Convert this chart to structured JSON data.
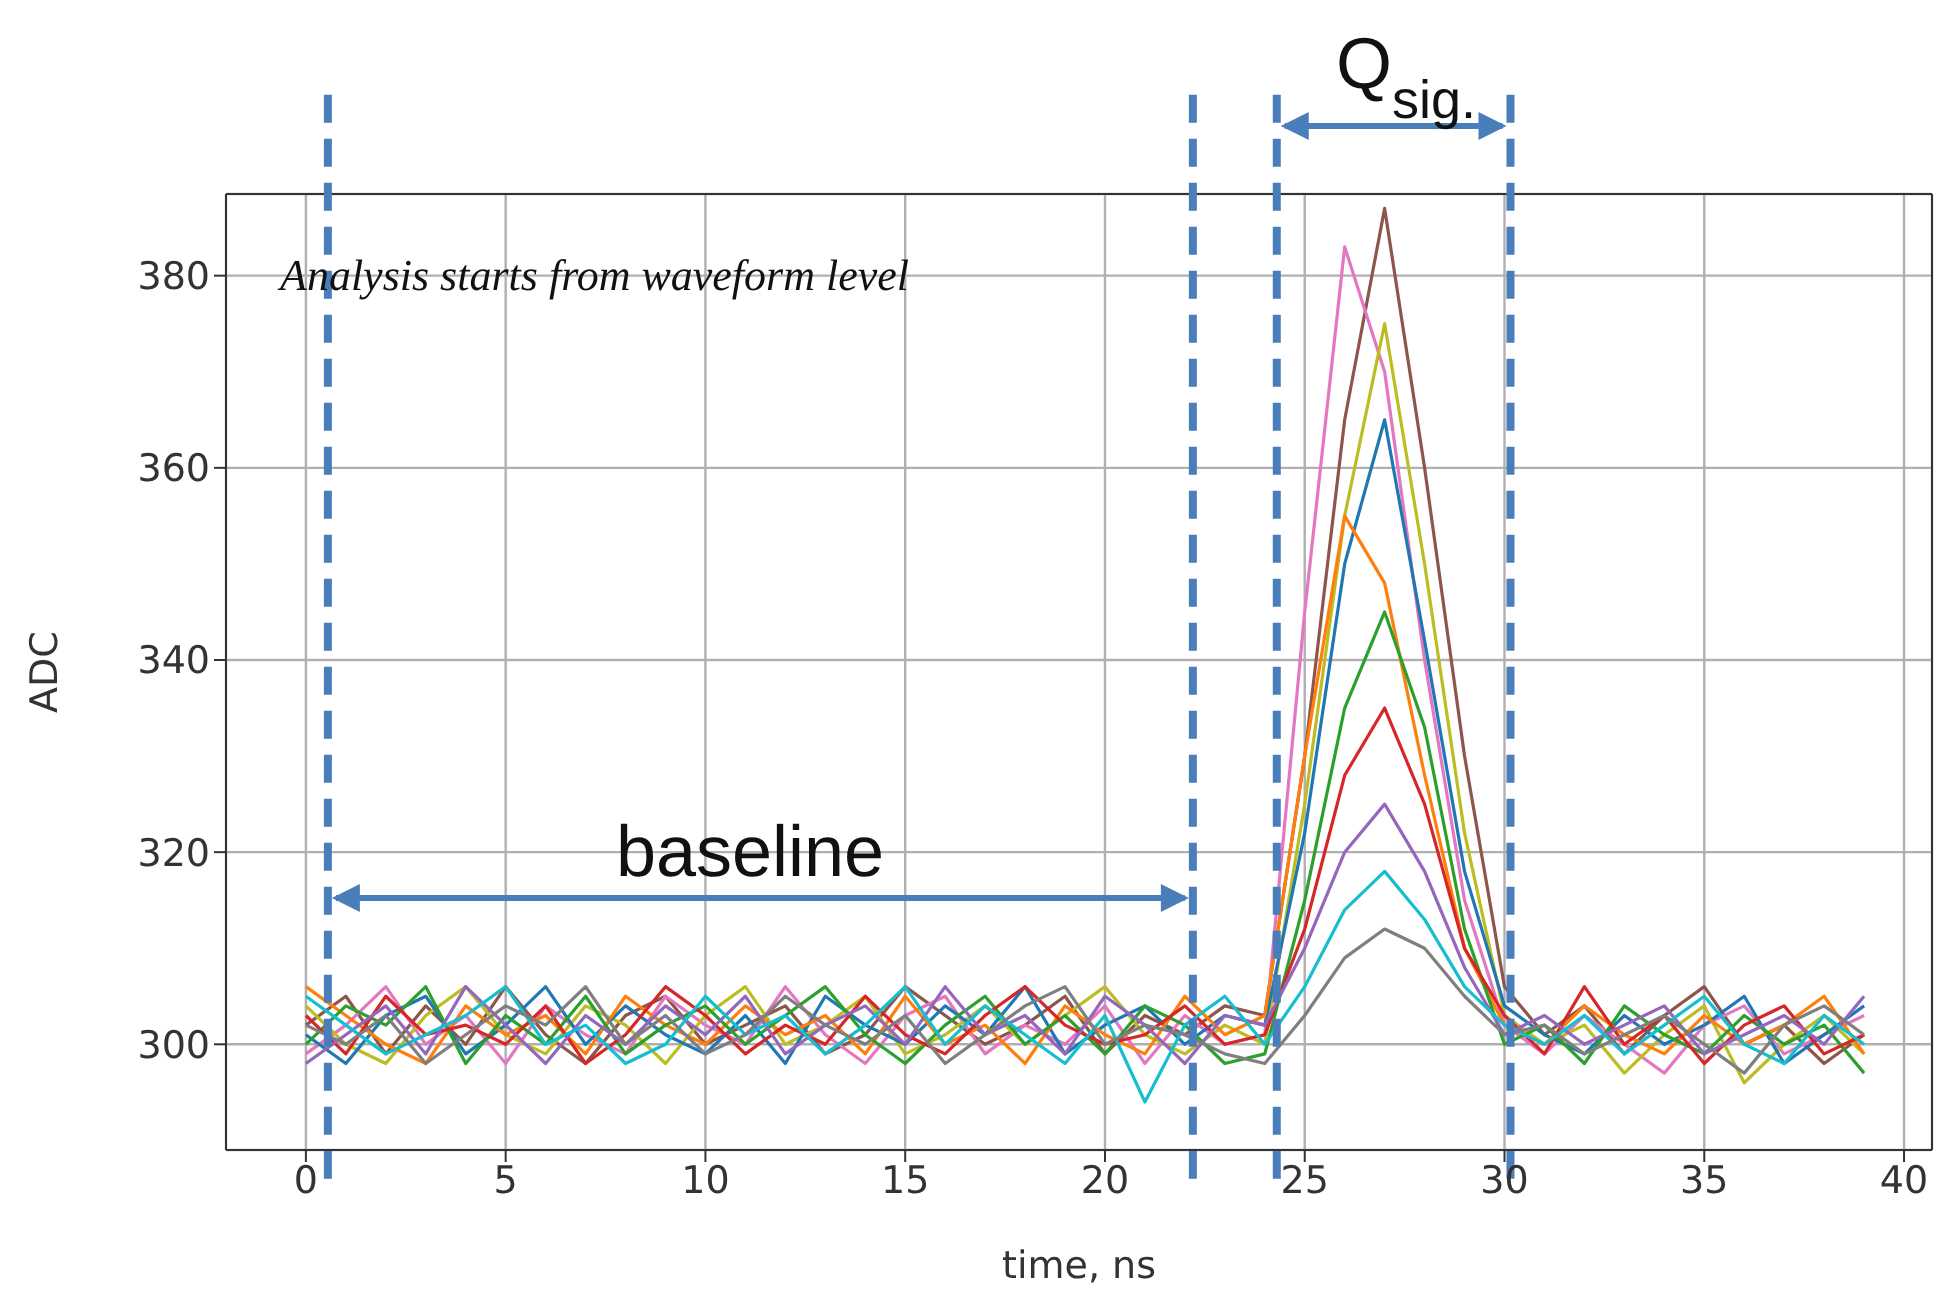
{
  "chart_data": {
    "type": "line",
    "xlabel": "time, ns",
    "ylabel": "ADC",
    "x": [
      0,
      1,
      2,
      3,
      4,
      5,
      6,
      7,
      8,
      9,
      10,
      11,
      12,
      13,
      14,
      15,
      16,
      17,
      18,
      19,
      20,
      21,
      22,
      23,
      24,
      25,
      26,
      27,
      28,
      29,
      30,
      31,
      32,
      33,
      34,
      35,
      36,
      37,
      38,
      39
    ],
    "xlim": [
      -2,
      40.7
    ],
    "xticks": [
      0,
      5,
      10,
      15,
      20,
      25,
      30,
      35,
      40
    ],
    "ylim": [
      289,
      388.5
    ],
    "yticks": [
      300,
      320,
      340,
      360,
      380
    ],
    "grid": true,
    "series": [
      {
        "color": "#8c564b",
        "values": [
          302,
          305,
          299,
          304,
          300,
          306,
          301,
          298,
          303,
          305,
          300,
          302,
          304,
          299,
          301,
          306,
          303,
          300,
          302,
          305,
          299,
          303,
          301,
          304,
          303,
          330,
          365,
          387,
          360,
          330,
          306,
          301,
          304,
          299,
          303,
          306,
          300,
          302,
          298,
          301
        ]
      },
      {
        "color": "#e377c2",
        "values": [
          299,
          302,
          306,
          300,
          303,
          298,
          304,
          301,
          299,
          305,
          302,
          300,
          306,
          301,
          298,
          303,
          305,
          299,
          302,
          300,
          304,
          298,
          303,
          300,
          301,
          345,
          383,
          370,
          340,
          315,
          302,
          299,
          303,
          300,
          297,
          302,
          304,
          299,
          301,
          303
        ]
      },
      {
        "color": "#bcbd22",
        "values": [
          304,
          300,
          298,
          303,
          306,
          301,
          299,
          304,
          302,
          298,
          303,
          306,
          300,
          302,
          305,
          299,
          301,
          304,
          300,
          303,
          306,
          301,
          299,
          302,
          300,
          325,
          355,
          375,
          350,
          322,
          303,
          300,
          302,
          297,
          301,
          304,
          296,
          300,
          303,
          299
        ]
      },
      {
        "color": "#1f77b4",
        "values": [
          301,
          298,
          303,
          305,
          299,
          302,
          306,
          300,
          304,
          301,
          299,
          303,
          298,
          305,
          302,
          300,
          304,
          301,
          306,
          299,
          302,
          304,
          300,
          303,
          302,
          322,
          350,
          365,
          342,
          318,
          304,
          301,
          299,
          303,
          300,
          302,
          305,
          298,
          301,
          304
        ]
      },
      {
        "color": "#ff7f0e",
        "values": [
          306,
          303,
          300,
          298,
          304,
          301,
          303,
          299,
          305,
          302,
          300,
          304,
          301,
          303,
          299,
          305,
          300,
          302,
          298,
          304,
          301,
          299,
          305,
          301,
          303,
          330,
          355,
          348,
          328,
          310,
          302,
          300,
          304,
          301,
          299,
          303,
          300,
          302,
          305,
          299
        ]
      },
      {
        "color": "#2ca02c",
        "values": [
          300,
          304,
          302,
          306,
          298,
          303,
          300,
          305,
          299,
          302,
          304,
          300,
          303,
          306,
          301,
          298,
          302,
          305,
          300,
          303,
          299,
          304,
          302,
          298,
          299,
          315,
          335,
          345,
          333,
          312,
          300,
          302,
          298,
          304,
          301,
          299,
          303,
          300,
          302,
          297
        ]
      },
      {
        "color": "#d62728",
        "values": [
          303,
          299,
          305,
          301,
          302,
          300,
          304,
          298,
          301,
          306,
          303,
          299,
          302,
          300,
          305,
          301,
          299,
          303,
          306,
          302,
          300,
          301,
          304,
          300,
          301,
          312,
          328,
          335,
          325,
          310,
          303,
          299,
          306,
          300,
          303,
          298,
          302,
          304,
          299,
          301
        ]
      },
      {
        "color": "#9467bd",
        "values": [
          298,
          301,
          304,
          299,
          306,
          302,
          298,
          303,
          300,
          304,
          301,
          305,
          299,
          302,
          304,
          300,
          306,
          301,
          303,
          299,
          305,
          302,
          298,
          303,
          302,
          310,
          320,
          325,
          318,
          308,
          301,
          303,
          300,
          302,
          304,
          299,
          301,
          303,
          300,
          305
        ]
      },
      {
        "color": "#17becf",
        "values": [
          305,
          302,
          299,
          301,
          303,
          306,
          300,
          302,
          298,
          300,
          305,
          301,
          303,
          299,
          302,
          306,
          300,
          304,
          301,
          298,
          303,
          294,
          302,
          305,
          300,
          306,
          314,
          318,
          313,
          306,
          302,
          300,
          303,
          299,
          302,
          305,
          300,
          298,
          303,
          300
        ]
      },
      {
        "color": "#7f7f7f",
        "values": [
          302,
          300,
          303,
          298,
          301,
          304,
          302,
          306,
          300,
          303,
          299,
          301,
          305,
          302,
          300,
          303,
          298,
          301,
          304,
          306,
          300,
          302,
          301,
          299,
          298,
          303,
          309,
          312,
          310,
          305,
          301,
          302,
          299,
          301,
          303,
          300,
          297,
          302,
          304,
          301
        ]
      }
    ],
    "ref_lines": [
      {
        "axis": "x",
        "value": 0.55,
        "color": "#4a7ebb",
        "line_style": "dashed"
      },
      {
        "axis": "x",
        "value": 22.2,
        "color": "#4a7ebb",
        "line_style": "dashed"
      },
      {
        "axis": "x",
        "value": 24.3,
        "color": "#4a7ebb",
        "line_style": "dashed"
      },
      {
        "axis": "x",
        "value": 30.15,
        "color": "#4a7ebb",
        "line_style": "dashed"
      }
    ],
    "annotations": [
      "Analysis starts from waveform level",
      "baseline",
      "Q$_{sig.}$"
    ]
  }
}
